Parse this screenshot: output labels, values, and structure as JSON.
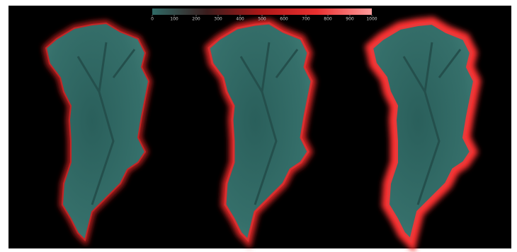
{
  "colorbar": {
    "range": [
      0,
      1000
    ],
    "ticks": [
      0,
      100,
      200,
      300,
      400,
      500,
      600,
      700,
      800,
      900,
      1000
    ],
    "colors": [
      "#2f6a66",
      "#3a1c1c",
      "#b01818",
      "#e83030",
      "#ff9c9c"
    ]
  }
}
